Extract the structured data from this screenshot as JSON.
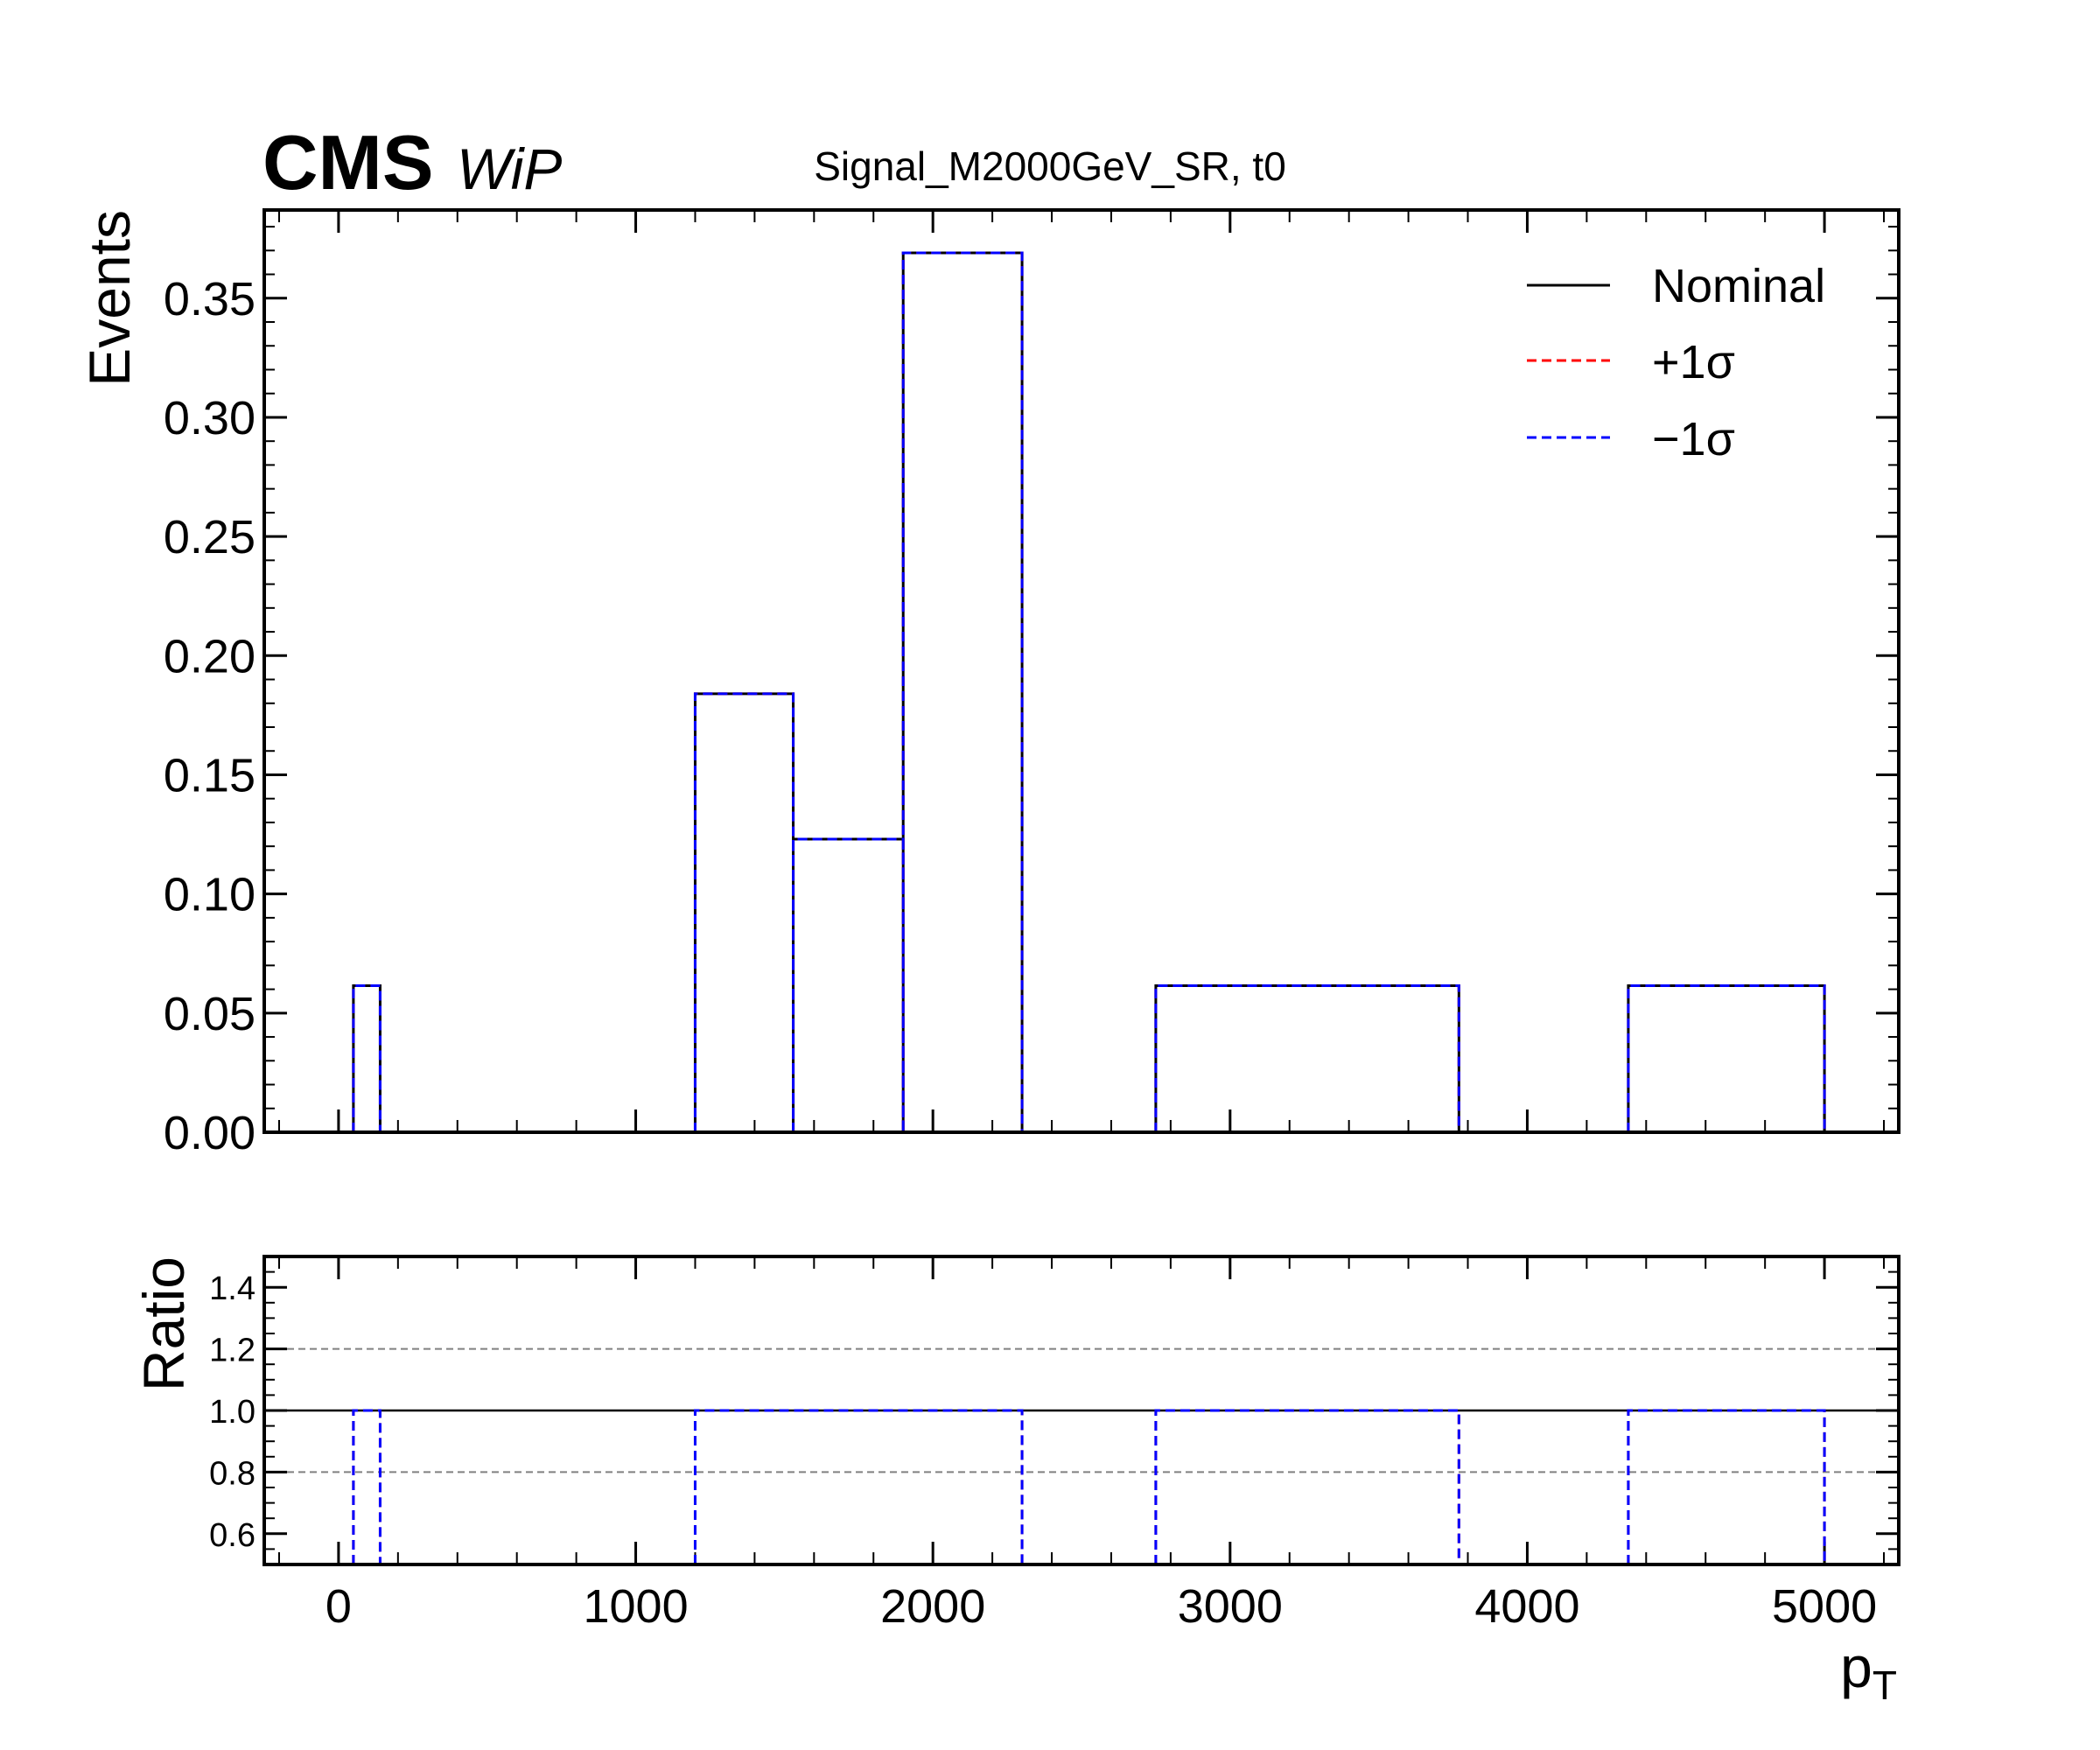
{
  "header": {
    "experiment": "CMS",
    "status": "WiP",
    "title": "Signal_M2000GeV_SR, t0"
  },
  "legend": {
    "position": "top-right",
    "items": [
      {
        "label": "Nominal",
        "color": "#000000",
        "style": "solid"
      },
      {
        "label": "+1σ",
        "color": "#ff0000",
        "style": "dashed"
      },
      {
        "label": "−1σ",
        "color": "#0000ff",
        "style": "dashed"
      }
    ]
  },
  "chart_data": [
    {
      "type": "histogram-step",
      "panel": "main",
      "ylabel": "Events",
      "xlim": [
        -250,
        5250
      ],
      "ylim": [
        0,
        0.387
      ],
      "yticks": [
        0.0,
        0.05,
        0.1,
        0.15,
        0.2,
        0.25,
        0.3,
        0.35
      ],
      "ytick_labels": [
        "0.00",
        "0.05",
        "0.10",
        "0.15",
        "0.20",
        "0.25",
        "0.30",
        "0.35"
      ],
      "bins": [
        {
          "x0": 50,
          "x1": 140,
          "value": 0.0615
        },
        {
          "x0": 1200,
          "x1": 1530,
          "value": 0.184
        },
        {
          "x0": 1530,
          "x1": 1900,
          "value": 0.123
        },
        {
          "x0": 1900,
          "x1": 2300,
          "value": 0.369
        },
        {
          "x0": 2750,
          "x1": 3770,
          "value": 0.0615
        },
        {
          "x0": 4340,
          "x1": 5000,
          "value": 0.0615
        }
      ],
      "series": [
        {
          "name": "Nominal",
          "color": "#000000",
          "dashed": false
        },
        {
          "name": "+1σ",
          "color": "#ff0000",
          "dashed": true
        },
        {
          "name": "−1σ",
          "color": "#0000ff",
          "dashed": true
        }
      ]
    },
    {
      "type": "ratio-step",
      "panel": "ratio",
      "ylabel": "Ratio",
      "xlabel": "pT",
      "xlim": [
        -250,
        5250
      ],
      "ylim": [
        0.5,
        1.5
      ],
      "yticks": [
        0.6,
        0.8,
        1.0,
        1.2,
        1.4
      ],
      "ytick_labels": [
        "0.6",
        "0.8",
        "1.0",
        "1.2",
        "1.4"
      ],
      "reference_lines": [
        {
          "y": 1.0,
          "style": "solid",
          "color": "#000000"
        },
        {
          "y": 0.8,
          "style": "dashed",
          "color": "#808080"
        },
        {
          "y": 1.2,
          "style": "dashed",
          "color": "#808080"
        }
      ],
      "xticks": [
        0,
        1000,
        2000,
        3000,
        4000,
        5000
      ],
      "xtick_labels": [
        "0",
        "1000",
        "2000",
        "3000",
        "4000",
        "5000"
      ],
      "ratio_segments": [
        {
          "x0": 50,
          "x1": 140,
          "value": 1.0
        },
        {
          "x0": 1200,
          "x1": 2300,
          "value": 1.0
        },
        {
          "x0": 2750,
          "x1": 3770,
          "value": 1.0
        },
        {
          "x0": 4340,
          "x1": 5000,
          "value": 1.0
        }
      ],
      "ratio_series": [
        {
          "name": "+1σ",
          "color": "#ff0000"
        },
        {
          "name": "−1σ",
          "color": "#0000ff"
        }
      ]
    }
  ]
}
